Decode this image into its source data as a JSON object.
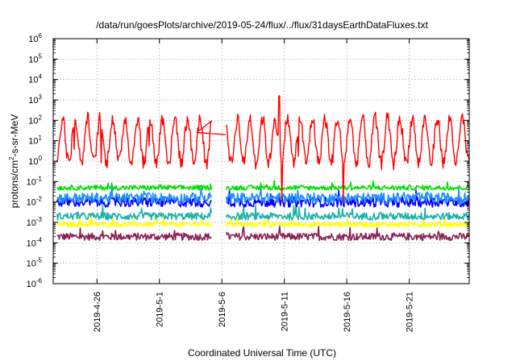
{
  "chart_data": {
    "type": "line",
    "title": "/data/run/goesPlots/archive/2019-05-24/flux/../flux/31daysEarthDataFluxes.txt",
    "xlabel": "Coordinated Universal Time (UTC)",
    "ylabel_parts": [
      "protons/cm",
      "2",
      "-s-sr-MeV"
    ],
    "y_scale": "log",
    "ylim_exponents": [
      -6,
      6
    ],
    "y_ticks": [
      {
        "base": "10",
        "exp": "-6"
      },
      {
        "base": "10",
        "exp": "-5"
      },
      {
        "base": "10",
        "exp": "-4"
      },
      {
        "base": "10",
        "exp": "-3"
      },
      {
        "base": "10",
        "exp": "-2"
      },
      {
        "base": "10",
        "exp": "-1"
      },
      {
        "base": "10",
        "exp": "0"
      },
      {
        "base": "10",
        "exp": "1"
      },
      {
        "base": "10",
        "exp": "2"
      },
      {
        "base": "10",
        "exp": "3"
      },
      {
        "base": "10",
        "exp": "4"
      },
      {
        "base": "10",
        "exp": "5"
      },
      {
        "base": "10",
        "exp": "6"
      }
    ],
    "xlim_days": [
      -3.5,
      29.8
    ],
    "x_ticks": [
      {
        "label": "2019-4-26",
        "day": 0
      },
      {
        "label": "2019-5-1",
        "day": 5
      },
      {
        "label": "2019-5-6",
        "day": 10
      },
      {
        "label": "2019-5-11",
        "day": 15
      },
      {
        "label": "2019-5-16",
        "day": 20
      },
      {
        "label": "2019-5-21",
        "day": 25
      }
    ],
    "grid": true,
    "gap_days": [
      9.2,
      10.3
    ],
    "series": [
      {
        "color": "#8b2252",
        "log_level": -3.7,
        "log_noise": 0.18
      },
      {
        "color": "#ffff00",
        "log_level": -3.1,
        "log_noise": 0.12
      },
      {
        "color": "#20b2aa",
        "log_level": -2.7,
        "log_noise": 0.18
      },
      {
        "color": "#0000ff",
        "log_level": -2.0,
        "log_noise": 0.25
      },
      {
        "color": "#1f8fff",
        "log_level": -1.8,
        "log_noise": 0.25
      },
      {
        "color": "#00dd00",
        "log_level": -1.3,
        "log_noise": 0.12
      },
      {
        "color": "#ff0000",
        "log_level": 1.0,
        "log_noise": 0.35,
        "daily_amplitude": 1.1
      }
    ]
  }
}
